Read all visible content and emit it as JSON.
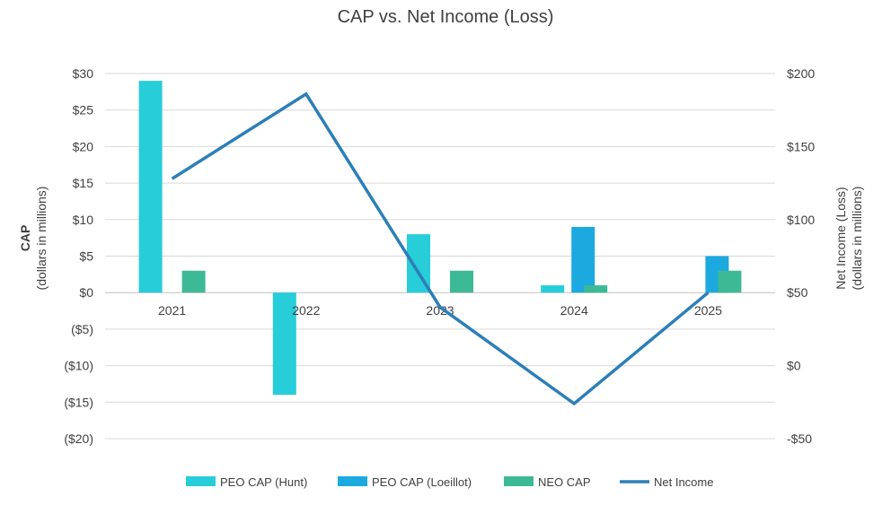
{
  "chart_data": {
    "type": "bar",
    "title": "CAP vs. Net Income (Loss)",
    "categories": [
      "2021",
      "2022",
      "2023",
      "2024",
      "2025"
    ],
    "left_axis": {
      "label_main": "CAP",
      "label_sub": "(dollars in millions)",
      "range": [
        -20,
        30
      ],
      "ticks": [
        30,
        25,
        20,
        15,
        10,
        5,
        0,
        -5,
        -10,
        -15,
        -20
      ],
      "tick_labels": [
        "$30",
        "$25",
        "$20",
        "$15",
        "$10",
        "$5",
        "$0",
        "($5)",
        "($10)",
        "($15)",
        "($20)"
      ]
    },
    "right_axis": {
      "label_main": "Net Income (Loss)",
      "label_sub": "(dollars in millions)",
      "range": [
        -50,
        200
      ],
      "ticks": [
        200,
        150,
        100,
        50,
        0,
        -50
      ],
      "tick_labels": [
        "$200",
        "$150",
        "$100",
        "$50",
        "$0",
        "-$50"
      ]
    },
    "series": [
      {
        "name": "PEO CAP (Hunt)",
        "kind": "bar",
        "axis": "left",
        "color": "#27CDD8",
        "values": [
          29,
          -14,
          8,
          1,
          null
        ]
      },
      {
        "name": "PEO CAP (Loeillot)",
        "kind": "bar",
        "axis": "left",
        "color": "#1CA9E0",
        "values": [
          null,
          null,
          null,
          9,
          5
        ]
      },
      {
        "name": "NEO CAP",
        "kind": "bar",
        "axis": "left",
        "color": "#3DB996",
        "values": [
          3,
          null,
          3,
          1,
          3
        ]
      },
      {
        "name": "Net Income",
        "kind": "line",
        "axis": "right",
        "color": "#2C7FB8",
        "values": [
          128,
          186,
          40,
          -26,
          50
        ]
      }
    ],
    "legend_position": "bottom",
    "grid": true
  }
}
